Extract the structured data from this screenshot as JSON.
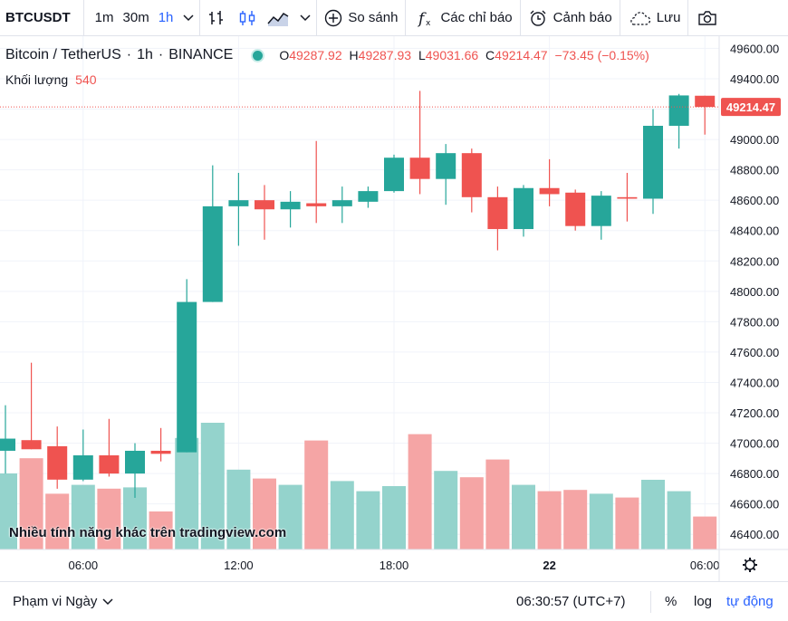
{
  "toolbar": {
    "symbol": "BTCUSDT",
    "intervals": [
      "1m",
      "30m",
      "1h"
    ],
    "active_interval": "1h",
    "compare_label": "So sánh",
    "indicators_label": "Các chỉ báo",
    "alert_label": "Cảnh báo",
    "save_label": "Lưu"
  },
  "legend": {
    "name": "Bitcoin / TetherUS",
    "interval": "1h",
    "exchange": "BINANCE",
    "o_label": "O",
    "o_value": "49287.92",
    "h_label": "H",
    "h_value": "49287.93",
    "l_label": "L",
    "l_value": "49031.66",
    "c_label": "C",
    "c_value": "49214.47",
    "change": "−73.45 (−0.15%)",
    "volume_label": "Khối lượng",
    "volume_value": "540"
  },
  "watermark": "Nhiều tính năng khác trên tradingview.com",
  "bottom": {
    "range_label": "Phạm vi Ngày",
    "clock": "06:30:57 (UTC+7)",
    "percent": "%",
    "log": "log",
    "auto": "tự động"
  },
  "colors": {
    "up": "#26a69a",
    "down": "#ef5350",
    "up_volume": "#94d3cc",
    "down_volume": "#f5a5a5",
    "grid": "#f0f3fa"
  },
  "chart_data": {
    "type": "candlestick",
    "ylim": [
      46300,
      49680
    ],
    "y_ticks": [
      46400,
      46600,
      46800,
      47000,
      47200,
      47400,
      47600,
      47800,
      48000,
      48200,
      48400,
      48600,
      48800,
      49000,
      49200,
      49400,
      49600
    ],
    "x_ticks": [
      {
        "index": 3,
        "label": "06:00"
      },
      {
        "index": 9,
        "label": "12:00"
      },
      {
        "index": 15,
        "label": "18:00"
      },
      {
        "index": 21,
        "label": "22"
      },
      {
        "index": 27,
        "label": "06:00"
      }
    ],
    "last_price": "49214.47",
    "candles": [
      {
        "o": 46950,
        "h": 47250,
        "l": 46800,
        "c": 47030,
        "v": 0.6
      },
      {
        "o": 47020,
        "h": 47530,
        "l": 46960,
        "c": 46960,
        "v": 0.72
      },
      {
        "o": 46980,
        "h": 47110,
        "l": 46700,
        "c": 46760,
        "v": 0.44
      },
      {
        "o": 46760,
        "h": 47090,
        "l": 46750,
        "c": 46920,
        "v": 0.51
      },
      {
        "o": 46920,
        "h": 47160,
        "l": 46780,
        "c": 46800,
        "v": 0.48
      },
      {
        "o": 46800,
        "h": 47000,
        "l": 46640,
        "c": 46950,
        "v": 0.49
      },
      {
        "o": 46950,
        "h": 47100,
        "l": 46880,
        "c": 46930,
        "v": 0.3
      },
      {
        "o": 46940,
        "h": 48080,
        "l": 46940,
        "c": 47930,
        "v": 0.88
      },
      {
        "o": 47930,
        "h": 48830,
        "l": 47930,
        "c": 48560,
        "v": 1.0
      },
      {
        "o": 48560,
        "h": 48780,
        "l": 48300,
        "c": 48600,
        "v": 0.63
      },
      {
        "o": 48600,
        "h": 48700,
        "l": 48340,
        "c": 48540,
        "v": 0.56
      },
      {
        "o": 48540,
        "h": 48660,
        "l": 48420,
        "c": 48590,
        "v": 0.51
      },
      {
        "o": 48580,
        "h": 48990,
        "l": 48450,
        "c": 48560,
        "v": 0.86
      },
      {
        "o": 48560,
        "h": 48690,
        "l": 48450,
        "c": 48600,
        "v": 0.54
      },
      {
        "o": 48590,
        "h": 48690,
        "l": 48550,
        "c": 48660,
        "v": 0.46
      },
      {
        "o": 48660,
        "h": 48900,
        "l": 48650,
        "c": 48880,
        "v": 0.5
      },
      {
        "o": 48880,
        "h": 49320,
        "l": 48640,
        "c": 48740,
        "v": 0.91
      },
      {
        "o": 48740,
        "h": 48970,
        "l": 48570,
        "c": 48910,
        "v": 0.62
      },
      {
        "o": 48910,
        "h": 48940,
        "l": 48520,
        "c": 48620,
        "v": 0.57
      },
      {
        "o": 48620,
        "h": 48690,
        "l": 48270,
        "c": 48410,
        "v": 0.71
      },
      {
        "o": 48410,
        "h": 48700,
        "l": 48360,
        "c": 48680,
        "v": 0.51
      },
      {
        "o": 48680,
        "h": 48870,
        "l": 48560,
        "c": 48640,
        "v": 0.46
      },
      {
        "o": 48650,
        "h": 48670,
        "l": 48400,
        "c": 48430,
        "v": 0.47
      },
      {
        "o": 48430,
        "h": 48660,
        "l": 48340,
        "c": 48630,
        "v": 0.44
      },
      {
        "o": 48620,
        "h": 48780,
        "l": 48460,
        "c": 48610,
        "v": 0.41
      },
      {
        "o": 48610,
        "h": 49200,
        "l": 48510,
        "c": 49090,
        "v": 0.55
      },
      {
        "o": 49090,
        "h": 49300,
        "l": 48940,
        "c": 49290,
        "v": 0.46
      },
      {
        "o": 49288,
        "h": 49288,
        "l": 49032,
        "c": 49214,
        "v": 0.26
      }
    ]
  }
}
